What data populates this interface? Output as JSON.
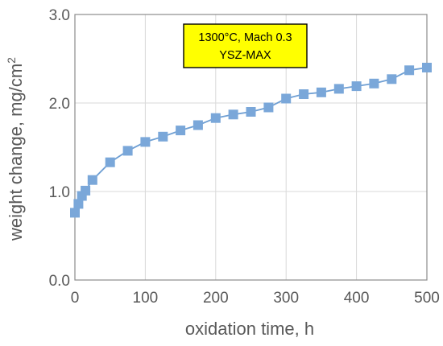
{
  "chart_data": {
    "type": "scatter",
    "xlabel": "oxidation time, h",
    "ylabel_main": "weight change, mg/cm",
    "ylabel_sup": "2",
    "xlim": [
      0,
      500
    ],
    "ylim": [
      0.0,
      3.0
    ],
    "x_ticks": [
      "0",
      "100",
      "200",
      "300",
      "400",
      "500"
    ],
    "y_ticks": [
      "0.0",
      "1.0",
      "2.0",
      "3.0"
    ],
    "x_tick_values": [
      0,
      100,
      200,
      300,
      400,
      500
    ],
    "y_tick_values": [
      0.0,
      1.0,
      2.0,
      3.0
    ],
    "grid": true,
    "annotation": {
      "line1": "1300°C, Mach 0.3",
      "line2": "YSZ-MAX",
      "fill": "#ffff00"
    },
    "series": [
      {
        "color": "#7aa7d9",
        "line_color": "#6f9fd3",
        "marker": "square",
        "x": [
          0,
          5,
          10,
          15,
          25,
          50,
          75,
          100,
          125,
          150,
          175,
          200,
          225,
          250,
          275,
          300,
          325,
          350,
          375,
          400,
          425,
          450,
          475,
          500
        ],
        "y": [
          0.76,
          0.86,
          0.95,
          1.01,
          1.13,
          1.33,
          1.46,
          1.56,
          1.62,
          1.69,
          1.75,
          1.83,
          1.87,
          1.9,
          1.95,
          2.05,
          2.1,
          2.12,
          2.16,
          2.19,
          2.22,
          2.27,
          2.37,
          2.4
        ]
      }
    ]
  }
}
